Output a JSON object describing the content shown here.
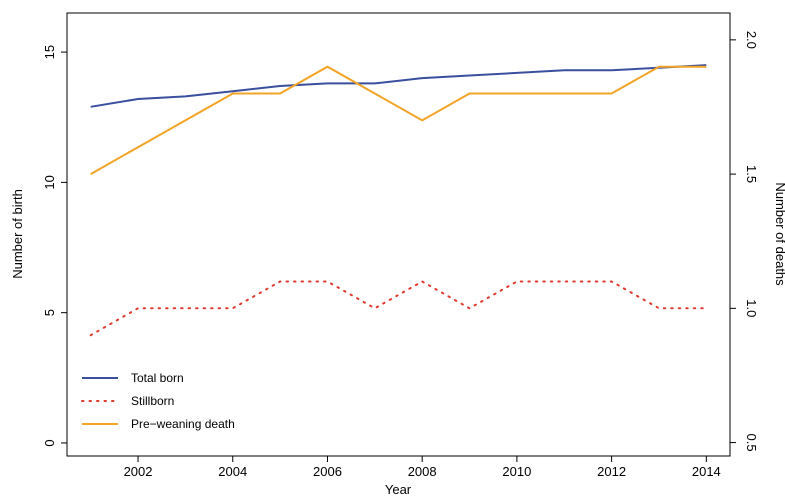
{
  "chart_data": {
    "type": "line",
    "xlabel": "Year",
    "ylabel": "Number of birth",
    "y2label": "Number of deaths",
    "x": [
      2001,
      2002,
      2003,
      2004,
      2005,
      2006,
      2007,
      2008,
      2009,
      2010,
      2011,
      2012,
      2013,
      2014
    ],
    "xlim": [
      2000.5,
      2014.5
    ],
    "ylim": [
      -0.5,
      16.5
    ],
    "y2lim": [
      0.45,
      2.1
    ],
    "xticks": [
      2002,
      2004,
      2006,
      2008,
      2010,
      2012,
      2014
    ],
    "xtick_labels": [
      "2002",
      "2004",
      "2006",
      "2008",
      "2010",
      "2012",
      "2014"
    ],
    "yticks": [
      0,
      5,
      10,
      15
    ],
    "ytick_labels": [
      "0",
      "5",
      "10",
      "15"
    ],
    "y2ticks": [
      0.5,
      1.0,
      1.5,
      2.0
    ],
    "y2tick_labels": [
      "0.5",
      "1.0",
      "1.5",
      "2.0"
    ],
    "grid": false,
    "legend_position": "bottom-left",
    "series": [
      {
        "name": "Total born",
        "axis": "left",
        "color": "#3a4f9e",
        "style": "solid",
        "values": [
          12.9,
          13.2,
          13.3,
          13.5,
          13.7,
          13.8,
          13.8,
          14.0,
          14.1,
          14.2,
          14.3,
          14.3,
          14.4,
          14.5
        ]
      },
      {
        "name": "Stillborn",
        "axis": "right",
        "color": "#e03a2c",
        "style": "dotted",
        "values": [
          0.9,
          1.0,
          1.0,
          1.0,
          1.1,
          1.1,
          1.0,
          1.1,
          1.0,
          1.1,
          1.1,
          1.1,
          1.0,
          1.0
        ]
      },
      {
        "name": "Pre−weaning death",
        "axis": "right",
        "color": "#f2a427",
        "style": "solid",
        "values": [
          1.5,
          1.6,
          1.7,
          1.8,
          1.8,
          1.9,
          1.8,
          1.7,
          1.8,
          1.8,
          1.8,
          1.8,
          1.9,
          1.9
        ]
      }
    ]
  }
}
